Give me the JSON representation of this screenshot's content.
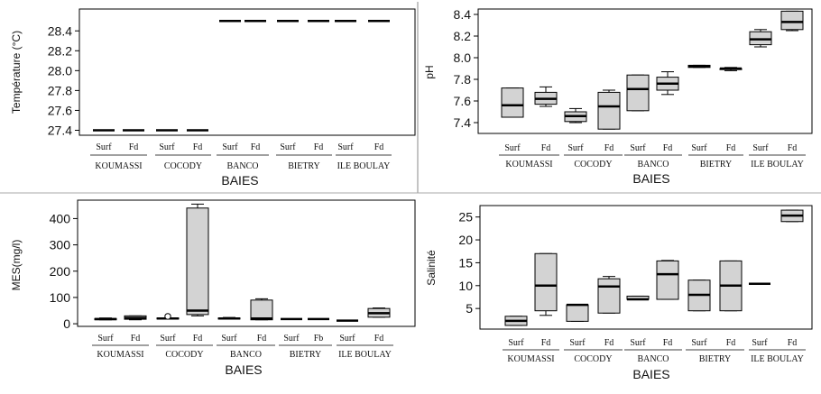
{
  "chart_data": [
    {
      "type": "box",
      "id": "temperature",
      "ylabel": "Température (°C)",
      "xlabel": "BAIES",
      "ylim": [
        27.35,
        28.62
      ],
      "yticks": [
        27.4,
        27.6,
        27.8,
        28.0,
        28.2,
        28.4
      ],
      "categories": [
        "Surf",
        "Fd",
        "Surf",
        "Fd",
        "Surf",
        "Fd",
        "Surf",
        "Fd",
        "Surf",
        "Fd"
      ],
      "groups": [
        "KOUMASSI",
        "COCODY",
        "BANCO",
        "BIETRY",
        "ILE BOULAY"
      ],
      "boxes": [
        {
          "min": 27.4,
          "q1": 27.4,
          "median": 27.4,
          "q3": 27.4,
          "max": 27.4
        },
        {
          "min": 27.4,
          "q1": 27.4,
          "median": 27.4,
          "q3": 27.4,
          "max": 27.4
        },
        {
          "min": 27.4,
          "q1": 27.4,
          "median": 27.4,
          "q3": 27.4,
          "max": 27.4
        },
        {
          "min": 27.4,
          "q1": 27.4,
          "median": 27.4,
          "q3": 27.4,
          "max": 27.4
        },
        {
          "min": 28.5,
          "q1": 28.5,
          "median": 28.5,
          "q3": 28.5,
          "max": 28.5
        },
        {
          "min": 28.5,
          "q1": 28.5,
          "median": 28.5,
          "q3": 28.5,
          "max": 28.5
        },
        {
          "min": 28.5,
          "q1": 28.5,
          "median": 28.5,
          "q3": 28.5,
          "max": 28.5
        },
        {
          "min": 28.5,
          "q1": 28.5,
          "median": 28.5,
          "q3": 28.5,
          "max": 28.5
        },
        {
          "min": 28.5,
          "q1": 28.5,
          "median": 28.5,
          "q3": 28.5,
          "max": 28.5
        },
        {
          "min": 28.5,
          "q1": 28.5,
          "median": 28.5,
          "q3": 28.5,
          "max": 28.5
        }
      ]
    },
    {
      "type": "box",
      "id": "ph",
      "ylabel": "pH",
      "xlabel": "BAIES",
      "ylim": [
        7.3,
        8.45
      ],
      "yticks": [
        7.4,
        7.6,
        7.8,
        8.0,
        8.2,
        8.4
      ],
      "categories": [
        "Surf",
        "Fd",
        "Surf",
        "Fd",
        "Surf",
        "Fd",
        "Surf",
        "Fd",
        "Surf",
        "Fd"
      ],
      "groups": [
        "KOUMASSI",
        "COCODY",
        "BANCO",
        "BIETRY",
        "ILE BOULAY"
      ],
      "boxes": [
        {
          "min": 7.45,
          "q1": 7.45,
          "median": 7.56,
          "q3": 7.72,
          "max": 7.72
        },
        {
          "min": 7.55,
          "q1": 7.57,
          "median": 7.62,
          "q3": 7.68,
          "max": 7.73
        },
        {
          "min": 7.4,
          "q1": 7.41,
          "median": 7.46,
          "q3": 7.5,
          "max": 7.53
        },
        {
          "min": 7.34,
          "q1": 7.34,
          "median": 7.55,
          "q3": 7.68,
          "max": 7.7
        },
        {
          "min": 7.51,
          "q1": 7.51,
          "median": 7.71,
          "q3": 7.84,
          "max": 7.84
        },
        {
          "min": 7.66,
          "q1": 7.7,
          "median": 7.76,
          "q3": 7.82,
          "max": 7.87
        },
        {
          "min": 7.91,
          "q1": 7.91,
          "median": 7.92,
          "q3": 7.93,
          "max": 7.93
        },
        {
          "min": 7.88,
          "q1": 7.89,
          "median": 7.9,
          "q3": 7.9,
          "max": 7.91
        },
        {
          "min": 8.1,
          "q1": 8.12,
          "median": 8.17,
          "q3": 8.24,
          "max": 8.26
        },
        {
          "min": 8.25,
          "q1": 8.26,
          "median": 8.33,
          "q3": 8.43,
          "max": 8.43
        }
      ]
    },
    {
      "type": "box",
      "id": "mes",
      "ylabel": "MES(mg/l)",
      "xlabel": "BAIES",
      "ylim": [
        -10,
        470
      ],
      "yticks": [
        0,
        100,
        200,
        300,
        400
      ],
      "categories": [
        "Surf",
        "Fd",
        "Surf",
        "Fd",
        "Surf",
        "Fd",
        "Surf",
        "Fb",
        "Surf",
        "Fd"
      ],
      "groups": [
        "KOUMASSI",
        "COCODY",
        "BANCO",
        "BIETRY",
        "ILE BOULAY"
      ],
      "boxes": [
        {
          "min": 15,
          "q1": 15,
          "median": 18,
          "q3": 20,
          "max": 22
        },
        {
          "min": 15,
          "q1": 17,
          "median": 22,
          "q3": 30,
          "max": 30
        },
        {
          "min": 18,
          "q1": 18,
          "median": 20,
          "q3": 22,
          "max": 22,
          "outliers": [
            28
          ]
        },
        {
          "min": 30,
          "q1": 35,
          "median": 50,
          "q3": 440,
          "max": 455
        },
        {
          "min": 18,
          "q1": 18,
          "median": 20,
          "q3": 22,
          "max": 24
        },
        {
          "min": 15,
          "q1": 15,
          "median": 20,
          "q3": 90,
          "max": 95
        },
        {
          "min": 18,
          "q1": 18,
          "median": 18,
          "q3": 18,
          "max": 18
        },
        {
          "min": 18,
          "q1": 18,
          "median": 18,
          "q3": 18,
          "max": 18
        },
        {
          "min": 12,
          "q1": 12,
          "median": 12,
          "q3": 12,
          "max": 12
        },
        {
          "min": 25,
          "q1": 25,
          "median": 40,
          "q3": 58,
          "max": 60
        }
      ]
    },
    {
      "type": "box",
      "id": "salinite",
      "ylabel": "Salinité",
      "xlabel": "BAIES",
      "ylim": [
        0.5,
        27.5
      ],
      "yticks": [
        5,
        10,
        15,
        20,
        25
      ],
      "categories": [
        "Surf",
        "Fd",
        "Surf",
        "Fd",
        "Surf",
        "Fd",
        "Surf",
        "Fd",
        "Surf",
        "Fd"
      ],
      "groups": [
        "KOUMASSI",
        "COCODY",
        "BANCO",
        "BIETRY",
        "ILE BOULAY"
      ],
      "boxes": [
        {
          "min": 1.3,
          "q1": 1.3,
          "median": 2.3,
          "q3": 3.3,
          "max": 3.3
        },
        {
          "min": 3.5,
          "q1": 4.5,
          "median": 10,
          "q3": 17,
          "max": 17
        },
        {
          "min": 2.2,
          "q1": 2.2,
          "median": 5.8,
          "q3": 5.8,
          "max": 5.8
        },
        {
          "min": 4,
          "q1": 4,
          "median": 9.8,
          "q3": 11.5,
          "max": 12
        },
        {
          "min": 7,
          "q1": 7,
          "median": 7,
          "q3": 7.7,
          "max": 7.7
        },
        {
          "min": 7,
          "q1": 7,
          "median": 12.5,
          "q3": 15.4,
          "max": 15.5
        },
        {
          "min": 4.5,
          "q1": 4.5,
          "median": 8,
          "q3": 11.2,
          "max": 11.2
        },
        {
          "min": 4.5,
          "q1": 4.5,
          "median": 10,
          "q3": 15.4,
          "max": 15.4
        },
        {
          "min": 10.4,
          "q1": 10.4,
          "median": 10.4,
          "q3": 10.4,
          "max": 10.4
        },
        {
          "min": 24,
          "q1": 24,
          "median": 25.3,
          "q3": 26.5,
          "max": 26.5
        }
      ]
    }
  ]
}
